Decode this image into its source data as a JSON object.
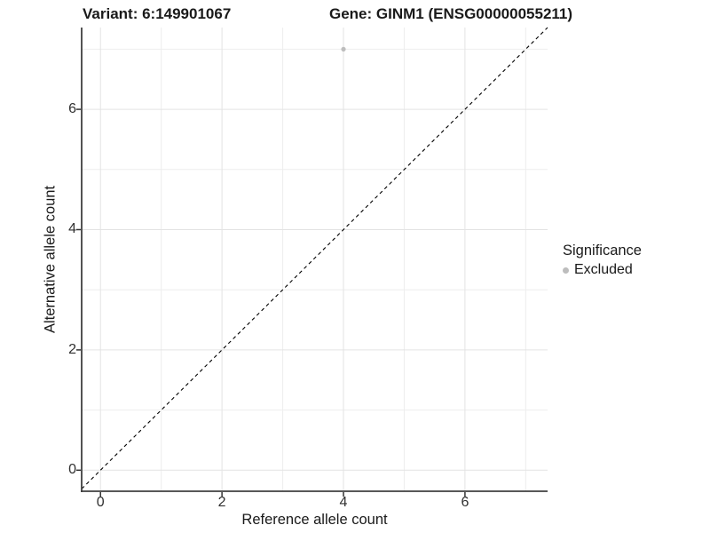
{
  "chart_data": {
    "type": "scatter",
    "titles": {
      "left": "Variant: 6:149901067",
      "right": "Gene: GINM1 (ENSG00000055211)"
    },
    "xlabel": "Reference allele count",
    "ylabel": "Alternative allele count",
    "xlim": [
      -0.31,
      7.36
    ],
    "ylim": [
      -0.35,
      7.36
    ],
    "xticks": [
      0,
      2,
      4,
      6
    ],
    "yticks": [
      0,
      2,
      4,
      6
    ],
    "xgrid_major": [
      0,
      2,
      4,
      6
    ],
    "xgrid_minor": [
      1,
      3,
      5,
      7
    ],
    "ygrid_major": [
      0,
      2,
      4,
      6
    ],
    "ygrid_minor": [
      1,
      3,
      5,
      7
    ],
    "grid": "on",
    "points": [
      {
        "x": 4,
        "y": 7,
        "series": "Excluded"
      }
    ],
    "point_color": "#bdbdbd",
    "point_radius": 2.6,
    "reference_line": {
      "equation": "y = x",
      "style": "dashed",
      "color": "#000000"
    },
    "legend": {
      "title": "Significance",
      "position": "right",
      "entries": [
        {
          "label": "Excluded",
          "color": "#bdbdbd",
          "marker": "circle"
        }
      ]
    },
    "colors": {
      "grid_major": "#e3e3e3",
      "grid_minor": "#eeeeee",
      "axis_line": "#404040",
      "tick_mark": "#333333"
    }
  }
}
